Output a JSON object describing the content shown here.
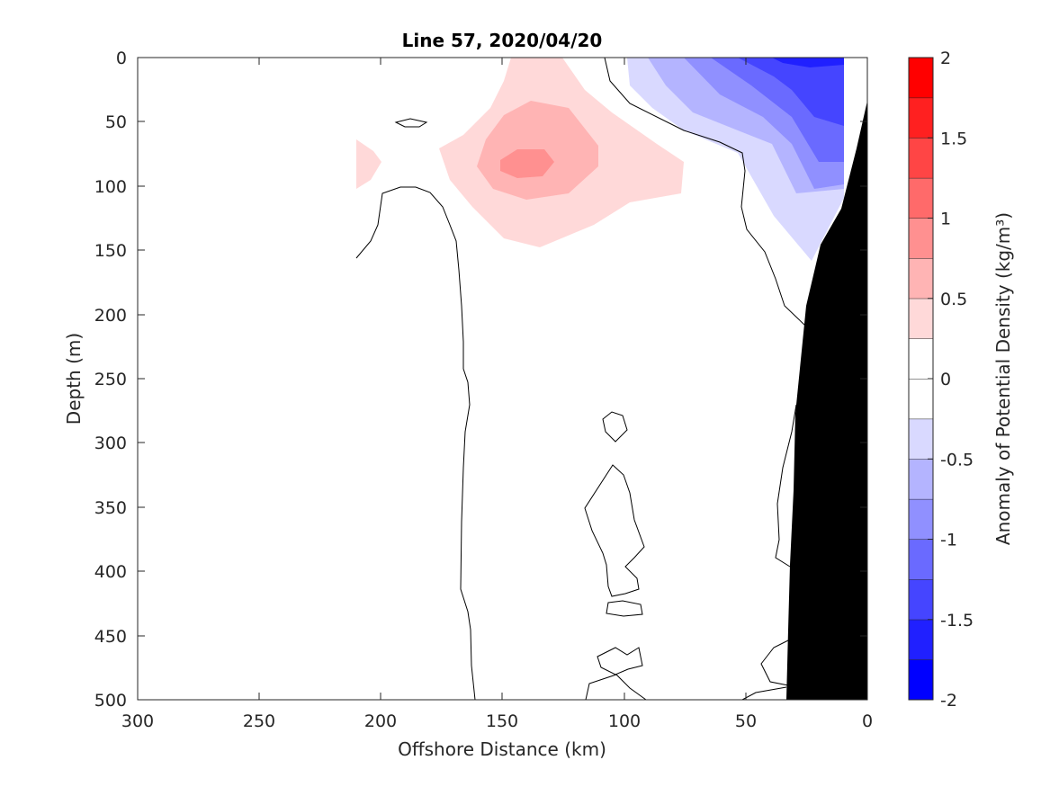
{
  "chart_data": {
    "type": "filled-contour",
    "title": "Line 57, 2020/04/20",
    "xlabel": "Offshore Distance (km)",
    "ylabel": "Depth (m)",
    "xlim": [
      300,
      0
    ],
    "ylim": [
      500,
      0
    ],
    "x_reversed": true,
    "y_reversed": true,
    "xticks": [
      300,
      250,
      200,
      150,
      100,
      50,
      0
    ],
    "yticks": [
      0,
      50,
      100,
      150,
      200,
      250,
      300,
      350,
      400,
      450,
      500
    ],
    "colorbar": {
      "label": "Anomaly of Potential Density (kg/m³)",
      "clim": [
        -2,
        2
      ],
      "ticks": [
        -2,
        -1.5,
        -1,
        -0.5,
        0,
        0.5,
        1,
        1.5,
        2
      ],
      "tick_labels": [
        "-2",
        "-1.5",
        "-1",
        "-0.5",
        "0",
        "0.5",
        "1",
        "1.5",
        "2"
      ],
      "levels": [
        -2,
        -1.75,
        -1.5,
        -1.25,
        -1,
        -0.75,
        -0.5,
        -0.25,
        0,
        0.25,
        0.5,
        0.75,
        1,
        1.25,
        1.5,
        1.75,
        2
      ],
      "colors": [
        "#0000ff",
        "#2020ff",
        "#4545ff",
        "#6a6aff",
        "#9090ff",
        "#b4b4ff",
        "#d9d9ff",
        "#ffffff",
        "#ffffff",
        "#ffd9d9",
        "#ffb4b4",
        "#ff9090",
        "#ff6a6a",
        "#ff4545",
        "#ff2020",
        "#ff0000"
      ]
    },
    "features": [
      {
        "name": "positive anomaly core",
        "center": [
          140,
          82
        ],
        "peak_value": 0.9
      },
      {
        "name": "positive anomaly mid",
        "center": [
          140,
          75
        ],
        "value": 0.6
      },
      {
        "name": "positive anomaly outer",
        "extent_x": [
          175,
          75
        ],
        "extent_y": [
          0,
          150
        ],
        "value": 0.35
      },
      {
        "name": "negative anomaly nearshore",
        "extent_x": [
          95,
          10
        ],
        "extent_y": [
          0,
          165
        ],
        "min_value": -1.75
      },
      {
        "name": "bathymetry",
        "color": "#000000"
      }
    ]
  }
}
